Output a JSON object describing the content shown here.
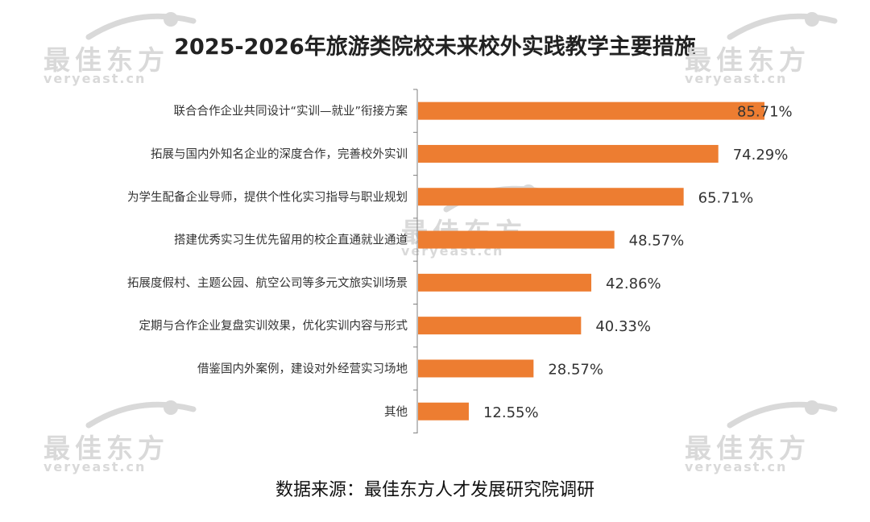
{
  "watermark": {
    "logo_text": "最佳东方",
    "site_text": "veryeast.cn"
  },
  "source": "数据来源：最佳东方人才发展研究院调研",
  "colors": {
    "bar": "#ED7D31",
    "axis": "#7f7f7f",
    "label": "#333333",
    "watermark": "#d9d9d9"
  },
  "chart_data": {
    "type": "bar",
    "orientation": "horizontal",
    "title": "2025-2026年旅游类院校未来校外实践教学主要措施",
    "xlabel": "",
    "ylabel": "",
    "xlim": [
      0,
      90
    ],
    "grid": false,
    "legend": "none",
    "categories": [
      "联合合作企业共同设计“实训—就业”衔接方案",
      "拓展与国内外知名企业的深度合作，完善校外实训",
      "为学生配备企业导师，提供个性化实习指导与职业规划",
      "搭建优秀实习生优先留用的校企直通就业通道",
      "拓展度假村、主题公园、航空公司等多元文旅实训场景",
      "定期与合作企业复盘实训效果，优化实训内容与形式",
      "借鉴国内外案例，建设对外经营实习场地",
      "其他"
    ],
    "values": [
      85.71,
      74.29,
      65.71,
      48.57,
      42.86,
      40.33,
      28.57,
      12.55
    ],
    "value_labels": [
      "85.71%",
      "74.29%",
      "65.71%",
      "48.57%",
      "42.86%",
      "40.33%",
      "28.57%",
      "12.55%"
    ]
  }
}
